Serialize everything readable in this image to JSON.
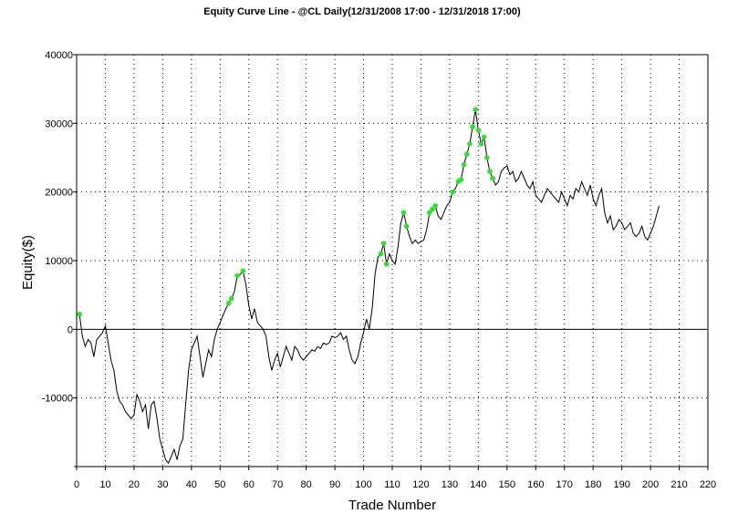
{
  "chart_data": {
    "type": "line",
    "title": "Equity Curve Line - @CL Daily(12/31/2008 17:00 - 12/31/2018 17:00)",
    "xlabel": "Trade Number",
    "ylabel": "Equity($)",
    "xlim": [
      0,
      220
    ],
    "ylim": [
      -20000,
      40000
    ],
    "x_ticks": [
      0,
      10,
      20,
      30,
      40,
      50,
      60,
      70,
      80,
      90,
      100,
      110,
      120,
      130,
      140,
      150,
      160,
      170,
      180,
      190,
      200,
      210,
      220
    ],
    "x_tick_labels": [
      "0",
      "10",
      "20",
      "30",
      "40",
      "50",
      "60",
      "70",
      "80",
      "90",
      "100",
      "110",
      "120",
      "130",
      "140",
      "150",
      "160",
      "170",
      "180",
      "190",
      "200",
      "210",
      "220"
    ],
    "y_ticks": [
      -10000,
      0,
      10000,
      20000,
      30000,
      40000
    ],
    "y_tick_labels": [
      "-10000",
      "0",
      "10000",
      "20000",
      "30000",
      "40000"
    ],
    "grid": true,
    "line_color": "#000000",
    "marker_color": "#33dd33",
    "series": [
      {
        "values": [
          [
            1,
            2200
          ],
          [
            2,
            -1000
          ],
          [
            3,
            -2500
          ],
          [
            4,
            -1500
          ],
          [
            5,
            -2000
          ],
          [
            6,
            -4000
          ],
          [
            7,
            -1500
          ],
          [
            8,
            -1000
          ],
          [
            9,
            -500
          ],
          [
            10,
            500
          ],
          [
            11,
            -2000
          ],
          [
            12,
            -4500
          ],
          [
            13,
            -6000
          ],
          [
            14,
            -9000
          ],
          [
            15,
            -10500
          ],
          [
            16,
            -11000
          ],
          [
            17,
            -12000
          ],
          [
            18,
            -12500
          ],
          [
            19,
            -13000
          ],
          [
            20,
            -12500
          ],
          [
            21,
            -9500
          ],
          [
            22,
            -10500
          ],
          [
            23,
            -12000
          ],
          [
            24,
            -11000
          ],
          [
            25,
            -14500
          ],
          [
            26,
            -11000
          ],
          [
            27,
            -10500
          ],
          [
            28,
            -13000
          ],
          [
            29,
            -16000
          ],
          [
            30,
            -17500
          ],
          [
            31,
            -19000
          ],
          [
            32,
            -19500
          ],
          [
            33,
            -18500
          ],
          [
            34,
            -17500
          ],
          [
            35,
            -19000
          ],
          [
            36,
            -17000
          ],
          [
            37,
            -16000
          ],
          [
            38,
            -11000
          ],
          [
            39,
            -6000
          ],
          [
            40,
            -3000
          ],
          [
            41,
            -2000
          ],
          [
            42,
            -1000
          ],
          [
            43,
            -4000
          ],
          [
            44,
            -7000
          ],
          [
            45,
            -5000
          ],
          [
            46,
            -3000
          ],
          [
            47,
            -4000
          ],
          [
            48,
            -1500
          ],
          [
            49,
            0
          ],
          [
            50,
            1000
          ],
          [
            51,
            2000
          ],
          [
            52,
            3000
          ],
          [
            53,
            3800
          ],
          [
            54,
            4500
          ],
          [
            55,
            5500
          ],
          [
            56,
            7800
          ],
          [
            57,
            8000
          ],
          [
            58,
            8500
          ],
          [
            59,
            6500
          ],
          [
            60,
            3500
          ],
          [
            61,
            1500
          ],
          [
            62,
            3000
          ],
          [
            63,
            1000
          ],
          [
            64,
            500
          ],
          [
            65,
            0
          ],
          [
            66,
            -1000
          ],
          [
            67,
            -4000
          ],
          [
            68,
            -6000
          ],
          [
            69,
            -4500
          ],
          [
            70,
            -3500
          ],
          [
            71,
            -5500
          ],
          [
            72,
            -4000
          ],
          [
            73,
            -2500
          ],
          [
            74,
            -3500
          ],
          [
            75,
            -4500
          ],
          [
            76,
            -2500
          ],
          [
            77,
            -3000
          ],
          [
            78,
            -4000
          ],
          [
            79,
            -4500
          ],
          [
            80,
            -4000
          ],
          [
            81,
            -3500
          ],
          [
            82,
            -3000
          ],
          [
            83,
            -3200
          ],
          [
            84,
            -2500
          ],
          [
            85,
            -2800
          ],
          [
            86,
            -2000
          ],
          [
            87,
            -2200
          ],
          [
            88,
            -2000
          ],
          [
            89,
            -1000
          ],
          [
            90,
            -1200
          ],
          [
            91,
            -1000
          ],
          [
            92,
            -500
          ],
          [
            93,
            -1500
          ],
          [
            94,
            -1000
          ],
          [
            95,
            -3000
          ],
          [
            96,
            -4500
          ],
          [
            97,
            -5000
          ],
          [
            98,
            -4000
          ],
          [
            99,
            -2000
          ],
          [
            100,
            -500
          ],
          [
            101,
            1500
          ],
          [
            102,
            0
          ],
          [
            103,
            3000
          ],
          [
            104,
            8000
          ],
          [
            105,
            10500
          ],
          [
            106,
            11000
          ],
          [
            107,
            12500
          ],
          [
            108,
            9500
          ],
          [
            109,
            11000
          ],
          [
            110,
            10000
          ],
          [
            111,
            9500
          ],
          [
            112,
            12000
          ],
          [
            113,
            15500
          ],
          [
            114,
            17000
          ],
          [
            115,
            15000
          ],
          [
            116,
            13500
          ],
          [
            117,
            12500
          ],
          [
            118,
            13000
          ],
          [
            119,
            12500
          ],
          [
            120,
            12800
          ],
          [
            121,
            13000
          ],
          [
            122,
            14500
          ],
          [
            123,
            17000
          ],
          [
            124,
            17500
          ],
          [
            125,
            18000
          ],
          [
            126,
            16500
          ],
          [
            127,
            16000
          ],
          [
            128,
            17000
          ],
          [
            129,
            18000
          ],
          [
            130,
            18500
          ],
          [
            131,
            20000
          ],
          [
            132,
            20500
          ],
          [
            133,
            21500
          ],
          [
            134,
            21800
          ],
          [
            135,
            24000
          ],
          [
            136,
            25500
          ],
          [
            137,
            27000
          ],
          [
            138,
            29500
          ],
          [
            139,
            32000
          ],
          [
            140,
            29000
          ],
          [
            141,
            27000
          ],
          [
            142,
            28000
          ],
          [
            143,
            25000
          ],
          [
            144,
            23000
          ],
          [
            145,
            22000
          ],
          [
            146,
            21000
          ],
          [
            147,
            21500
          ],
          [
            148,
            23000
          ],
          [
            149,
            23500
          ],
          [
            150,
            23800
          ],
          [
            151,
            22500
          ],
          [
            152,
            23000
          ],
          [
            153,
            21500
          ],
          [
            154,
            22000
          ],
          [
            155,
            23000
          ],
          [
            156,
            22000
          ],
          [
            157,
            21000
          ],
          [
            158,
            20500
          ],
          [
            159,
            21500
          ],
          [
            160,
            19500
          ],
          [
            161,
            19000
          ],
          [
            162,
            18500
          ],
          [
            163,
            19500
          ],
          [
            164,
            20500
          ],
          [
            165,
            20000
          ],
          [
            166,
            19500
          ],
          [
            167,
            19000
          ],
          [
            168,
            18500
          ],
          [
            169,
            20000
          ],
          [
            170,
            19000
          ],
          [
            171,
            18000
          ],
          [
            172,
            19500
          ],
          [
            173,
            19000
          ],
          [
            174,
            20500
          ],
          [
            175,
            20000
          ],
          [
            176,
            21500
          ],
          [
            177,
            20500
          ],
          [
            178,
            19500
          ],
          [
            179,
            21000
          ],
          [
            180,
            19000
          ],
          [
            181,
            18000
          ],
          [
            182,
            19500
          ],
          [
            183,
            20500
          ],
          [
            184,
            17000
          ],
          [
            185,
            15500
          ],
          [
            186,
            16500
          ],
          [
            187,
            14500
          ],
          [
            188,
            15000
          ],
          [
            189,
            16000
          ],
          [
            190,
            15500
          ],
          [
            191,
            14500
          ],
          [
            192,
            15000
          ],
          [
            193,
            15500
          ],
          [
            194,
            14000
          ],
          [
            195,
            13500
          ],
          [
            196,
            14000
          ],
          [
            197,
            15000
          ],
          [
            198,
            13500
          ],
          [
            199,
            13000
          ],
          [
            200,
            14000
          ],
          [
            201,
            15000
          ],
          [
            202,
            16500
          ],
          [
            203,
            18000
          ]
        ],
        "markers": [
          1,
          53,
          54,
          56,
          58,
          106,
          107,
          108,
          114,
          115,
          123,
          124,
          125,
          131,
          133,
          134,
          135,
          136,
          137,
          138,
          139,
          140,
          141,
          142,
          143,
          144,
          145
        ]
      }
    ]
  }
}
